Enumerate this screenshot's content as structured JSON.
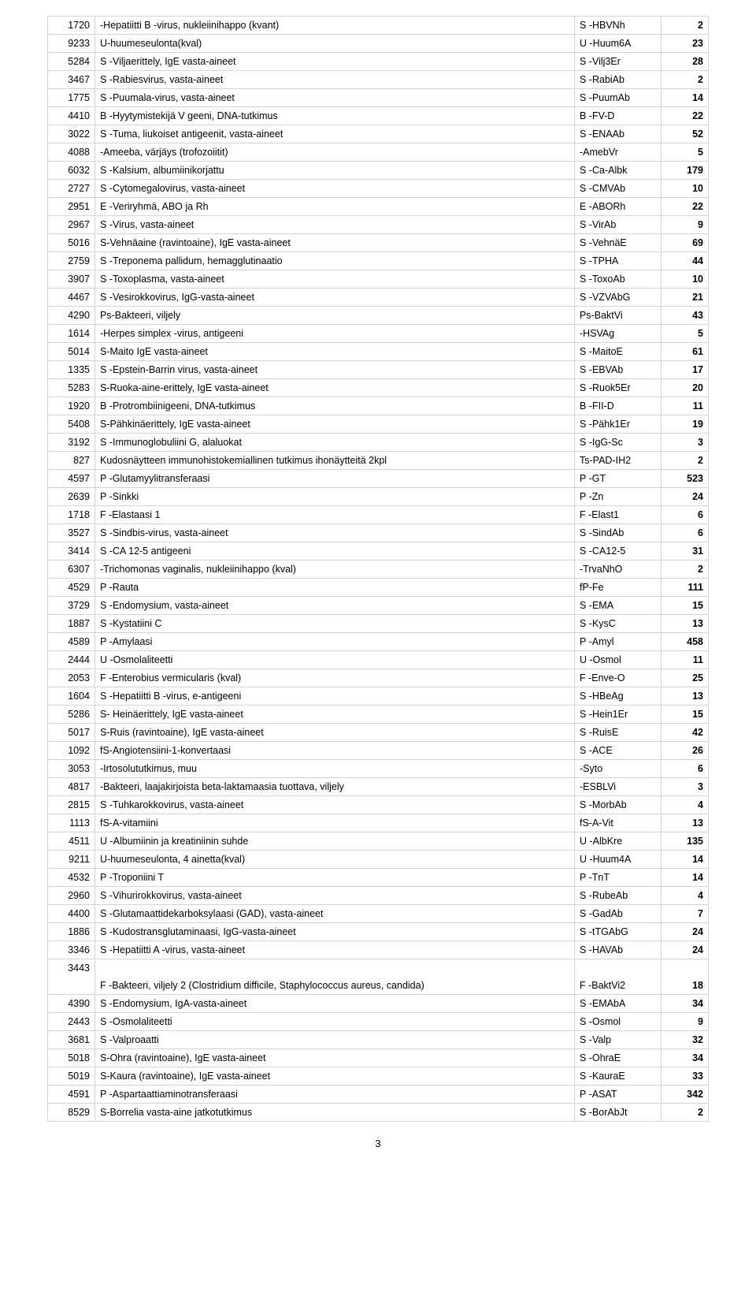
{
  "rows": [
    {
      "code": "1720",
      "name": "-Hepatiitti B -virus, nukleiinihappo (kvant)",
      "abbr": "S -HBVNh",
      "count": "2"
    },
    {
      "code": "9233",
      "name": "U-huumeseulonta(kval)",
      "abbr": "U -Huum6A",
      "count": "23"
    },
    {
      "code": "5284",
      "name": "S -Viljaerittely, IgE vasta-aineet",
      "abbr": "S -Vilj3Er",
      "count": "28"
    },
    {
      "code": "3467",
      "name": "S -Rabiesvirus, vasta-aineet",
      "abbr": "S -RabiAb",
      "count": "2"
    },
    {
      "code": "1775",
      "name": "S -Puumala-virus, vasta-aineet",
      "abbr": "S -PuumAb",
      "count": "14"
    },
    {
      "code": "4410",
      "name": "B -Hyytymistekijä V geeni, DNA-tutkimus",
      "abbr": "B -FV-D",
      "count": "22"
    },
    {
      "code": "3022",
      "name": "S -Tuma, liukoiset antigeenit, vasta-aineet",
      "abbr": "S -ENAAb",
      "count": "52"
    },
    {
      "code": "4088",
      "name": "-Ameeba, värjäys (trofozoiitit)",
      "abbr": " -AmebVr",
      "count": "5"
    },
    {
      "code": "6032",
      "name": "S -Kalsium, albumiinikorjattu",
      "abbr": "S -Ca-Albk",
      "count": "179"
    },
    {
      "code": "2727",
      "name": "S -Cytomegalovirus, vasta-aineet",
      "abbr": "S -CMVAb",
      "count": "10"
    },
    {
      "code": "2951",
      "name": "E -Veriryhmä, ABO ja Rh",
      "abbr": "E -ABORh",
      "count": "22"
    },
    {
      "code": "2967",
      "name": "S -Virus, vasta-aineet",
      "abbr": "S -VirAb",
      "count": "9"
    },
    {
      "code": "5016",
      "name": "S-Vehnäaine (ravintoaine), IgE vasta-aineet",
      "abbr": "S -VehnäE",
      "count": "69"
    },
    {
      "code": "2759",
      "name": "S -Treponema pallidum, hemagglutinaatio",
      "abbr": "S -TPHA",
      "count": "44"
    },
    {
      "code": "3907",
      "name": "S -Toxoplasma, vasta-aineet",
      "abbr": "S -ToxoAb",
      "count": "10"
    },
    {
      "code": "4467",
      "name": "S -Vesirokkovirus, IgG-vasta-aineet",
      "abbr": "S -VZVAbG",
      "count": "21"
    },
    {
      "code": "4290",
      "name": "Ps-Bakteeri, viljely",
      "abbr": "Ps-BaktVi",
      "count": "43"
    },
    {
      "code": "1614",
      "name": "-Herpes simplex -virus, antigeeni",
      "abbr": " -HSVAg",
      "count": "5"
    },
    {
      "code": "5014",
      "name": "S-Maito IgE vasta-aineet",
      "abbr": "S -MaitoE",
      "count": "61"
    },
    {
      "code": "1335",
      "name": "S -Epstein-Barrin virus, vasta-aineet",
      "abbr": "S -EBVAb",
      "count": "17"
    },
    {
      "code": "5283",
      "name": "S-Ruoka-aine-erittely, IgE vasta-aineet",
      "abbr": "S -Ruok5Er",
      "count": "20"
    },
    {
      "code": "1920",
      "name": "B -Protrombiinigeeni, DNA-tutkimus",
      "abbr": "B -FII-D",
      "count": "11"
    },
    {
      "code": "5408",
      "name": "S-Pähkinäerittely, IgE vasta-aineet",
      "abbr": "S -Pähk1Er",
      "count": "19"
    },
    {
      "code": "3192",
      "name": "S -Immunoglobuliini G, alaluokat",
      "abbr": "S -IgG-Sc",
      "count": "3"
    },
    {
      "code": "827",
      "name": "Kudosnäytteen immunohistokemiallinen tutkimus ihonäytteitä 2kpl",
      "abbr": "Ts-PAD-IH2",
      "count": "2"
    },
    {
      "code": "4597",
      "name": "P -Glutamyylitransferaasi",
      "abbr": "P -GT",
      "count": "523"
    },
    {
      "code": "2639",
      "name": "P -Sinkki",
      "abbr": "P -Zn",
      "count": "24"
    },
    {
      "code": "1718",
      "name": "F -Elastaasi 1",
      "abbr": "F -Elast1",
      "count": "6"
    },
    {
      "code": "3527",
      "name": "S -Sindbis-virus, vasta-aineet",
      "abbr": "S -SindAb",
      "count": "6"
    },
    {
      "code": "3414",
      "name": "S -CA 12-5 antigeeni",
      "abbr": "S -CA12-5",
      "count": "31"
    },
    {
      "code": "6307",
      "name": "-Trichomonas vaginalis, nukleiinihappo (kval)",
      "abbr": " -TrvaNhO",
      "count": "2"
    },
    {
      "code": "4529",
      "name": "P -Rauta",
      "abbr": "fP-Fe",
      "count": "111"
    },
    {
      "code": "3729",
      "name": "S -Endomysium, vasta-aineet",
      "abbr": "S -EMA",
      "count": "15"
    },
    {
      "code": "1887",
      "name": "S -Kystatiini C",
      "abbr": "S -KysC",
      "count": "13"
    },
    {
      "code": "4589",
      "name": "P -Amylaasi",
      "abbr": "P -Amyl",
      "count": "458"
    },
    {
      "code": "2444",
      "name": "U -Osmolaliteetti",
      "abbr": "U -Osmol",
      "count": "11"
    },
    {
      "code": "2053",
      "name": "F -Enterobius vermicularis (kval)",
      "abbr": "F -Enve-O",
      "count": "25"
    },
    {
      "code": "1604",
      "name": "S -Hepatiitti B -virus, e-antigeeni",
      "abbr": "S -HBeAg",
      "count": "13"
    },
    {
      "code": "5286",
      "name": "S- Heinäerittely, IgE vasta-aineet",
      "abbr": "S -Hein1Er",
      "count": "15"
    },
    {
      "code": "5017",
      "name": "S-Ruis (ravintoaine), IgE vasta-aineet",
      "abbr": "S -RuisE",
      "count": "42"
    },
    {
      "code": "1092",
      "name": "fS-Angiotensiini-1-konvertaasi",
      "abbr": "S -ACE",
      "count": "26"
    },
    {
      "code": "3053",
      "name": "-Irtosolututkimus, muu",
      "abbr": " -Syto",
      "count": "6"
    },
    {
      "code": "4817",
      "name": "-Bakteeri, laajakirjoista beta-laktamaasia tuottava, viljely",
      "abbr": " -ESBLVi",
      "count": "3"
    },
    {
      "code": "2815",
      "name": "S -Tuhkarokkovirus, vasta-aineet",
      "abbr": "S -MorbAb",
      "count": "4"
    },
    {
      "code": "1113",
      "name": "fS-A-vitamiini",
      "abbr": "fS-A-Vit",
      "count": "13"
    },
    {
      "code": "4511",
      "name": "U -Albumiinin ja kreatiniinin suhde",
      "abbr": "U -AlbKre",
      "count": "135"
    },
    {
      "code": "9211",
      "name": "U-huumeseulonta, 4 ainetta(kval)",
      "abbr": "U -Huum4A",
      "count": "14"
    },
    {
      "code": "4532",
      "name": "P -Troponiini T",
      "abbr": "P -TnT",
      "count": "14"
    },
    {
      "code": "2960",
      "name": "S -Vihurirokkovirus, vasta-aineet",
      "abbr": "S -RubeAb",
      "count": "4"
    },
    {
      "code": "4400",
      "name": "S -Glutamaattidekarboksylaasi (GAD), vasta-aineet",
      "abbr": "S -GadAb",
      "count": "7"
    },
    {
      "code": "1886",
      "name": "S -Kudostransglutaminaasi, IgG-vasta-aineet",
      "abbr": "S -tTGAbG",
      "count": "24"
    },
    {
      "code": "3346",
      "name": "S -Hepatiitti A -virus, vasta-aineet",
      "abbr": "S -HAVAb",
      "count": "24"
    },
    {
      "code": "3443",
      "name": "F -Bakteeri, viljely 2 (Clostridium difficile, Staphylococcus aureus, candida)",
      "abbr": "F -BaktVi2",
      "count": "18",
      "special": true
    },
    {
      "code": "4390",
      "name": "S -Endomysium, IgA-vasta-aineet",
      "abbr": "S -EMAbA",
      "count": "34"
    },
    {
      "code": "2443",
      "name": "S -Osmolaliteetti",
      "abbr": "S -Osmol",
      "count": "9"
    },
    {
      "code": "3681",
      "name": "S -Valproaatti",
      "abbr": "S -Valp",
      "count": "32"
    },
    {
      "code": "5018",
      "name": "S-Ohra (ravintoaine), IgE vasta-aineet",
      "abbr": "S -OhraE",
      "count": "34"
    },
    {
      "code": "5019",
      "name": "S-Kaura (ravintoaine), IgE vasta-aineet",
      "abbr": "S -KauraE",
      "count": "33"
    },
    {
      "code": "4591",
      "name": "P -Aspartaattiaminotransferaasi",
      "abbr": "P -ASAT",
      "count": "342"
    },
    {
      "code": "8529",
      "name": "S-Borrelia vasta-aine jatkotutkimus",
      "abbr": "S -BorAbJt",
      "count": "2"
    }
  ],
  "page_number": "3"
}
